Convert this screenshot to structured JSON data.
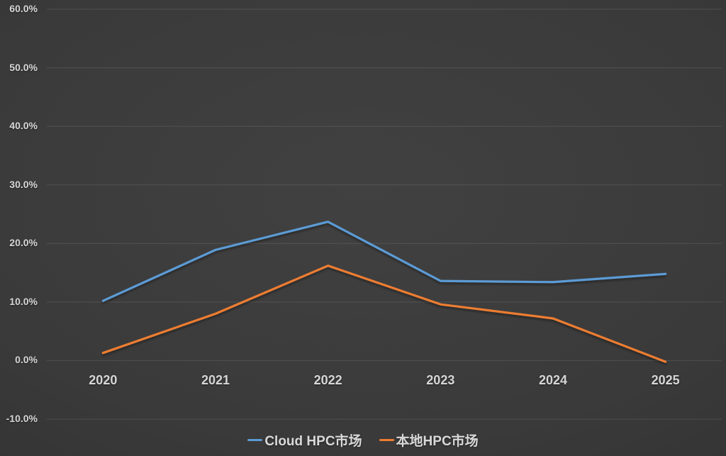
{
  "chart_data": {
    "type": "line",
    "title": "",
    "categories": [
      "2020",
      "2021",
      "2022",
      "2023",
      "2024",
      "2025"
    ],
    "series": [
      {
        "name": "Cloud HPC市场",
        "color": "#5B9BD5",
        "values": [
          10.2,
          18.9,
          23.7,
          13.6,
          13.4,
          14.8
        ]
      },
      {
        "name": "本地HPC市场",
        "color": "#ED7D31",
        "values": [
          1.3,
          8.0,
          16.2,
          9.6,
          7.2,
          -0.2
        ]
      }
    ],
    "xlabel": "",
    "ylabel": "",
    "ylim": [
      -10,
      60
    ],
    "ytick_step": 10,
    "ytick_labels": [
      "60.0%",
      "50.0%",
      "40.0%",
      "30.0%",
      "20.0%",
      "10.0%",
      "0.0%",
      "-10.0%"
    ],
    "grid": true,
    "gridline_color": "rgba(255,255,255,0.11)",
    "legend_position": "bottom",
    "background": "dark-gray-gradient",
    "tick_label_color": "#d6d6d6"
  },
  "legend": {
    "items": [
      {
        "label": "Cloud HPC市场"
      },
      {
        "label": "本地HPC市场"
      }
    ]
  }
}
